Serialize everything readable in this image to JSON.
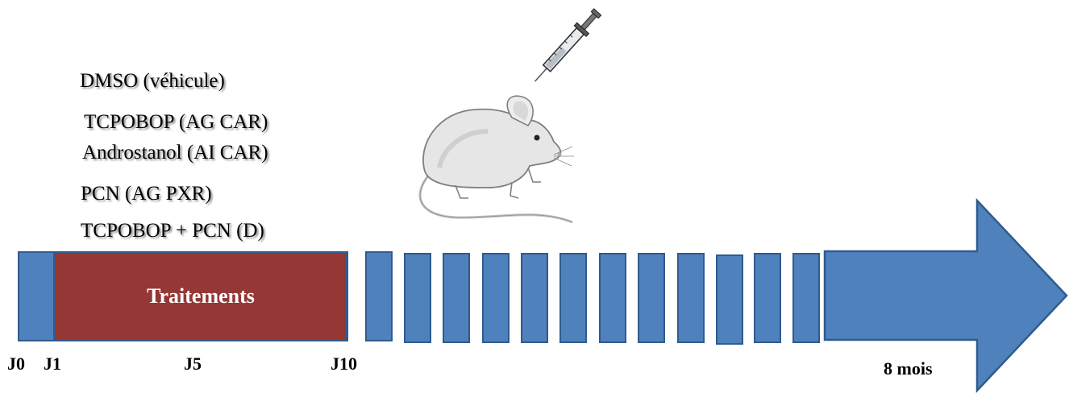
{
  "treatments": [
    "DMSO (véhicule)",
    "TCPOBOP (AG CAR)",
    "Androstanol (AI CAR)",
    "PCN (AG PXR)",
    "TCPOBOP + PCN (D)"
  ],
  "timeline": {
    "block_label": "Traitements",
    "labels": {
      "j0": "J0",
      "j1": "J1",
      "j5": "J5",
      "j10": "J10",
      "end": "8 mois"
    }
  },
  "colors": {
    "timeline_blue": "#4f81bd",
    "border_blue": "#2f5b8e",
    "treatment_red": "#953735"
  },
  "icons": [
    "syringe-icon",
    "mouse-illustration"
  ]
}
